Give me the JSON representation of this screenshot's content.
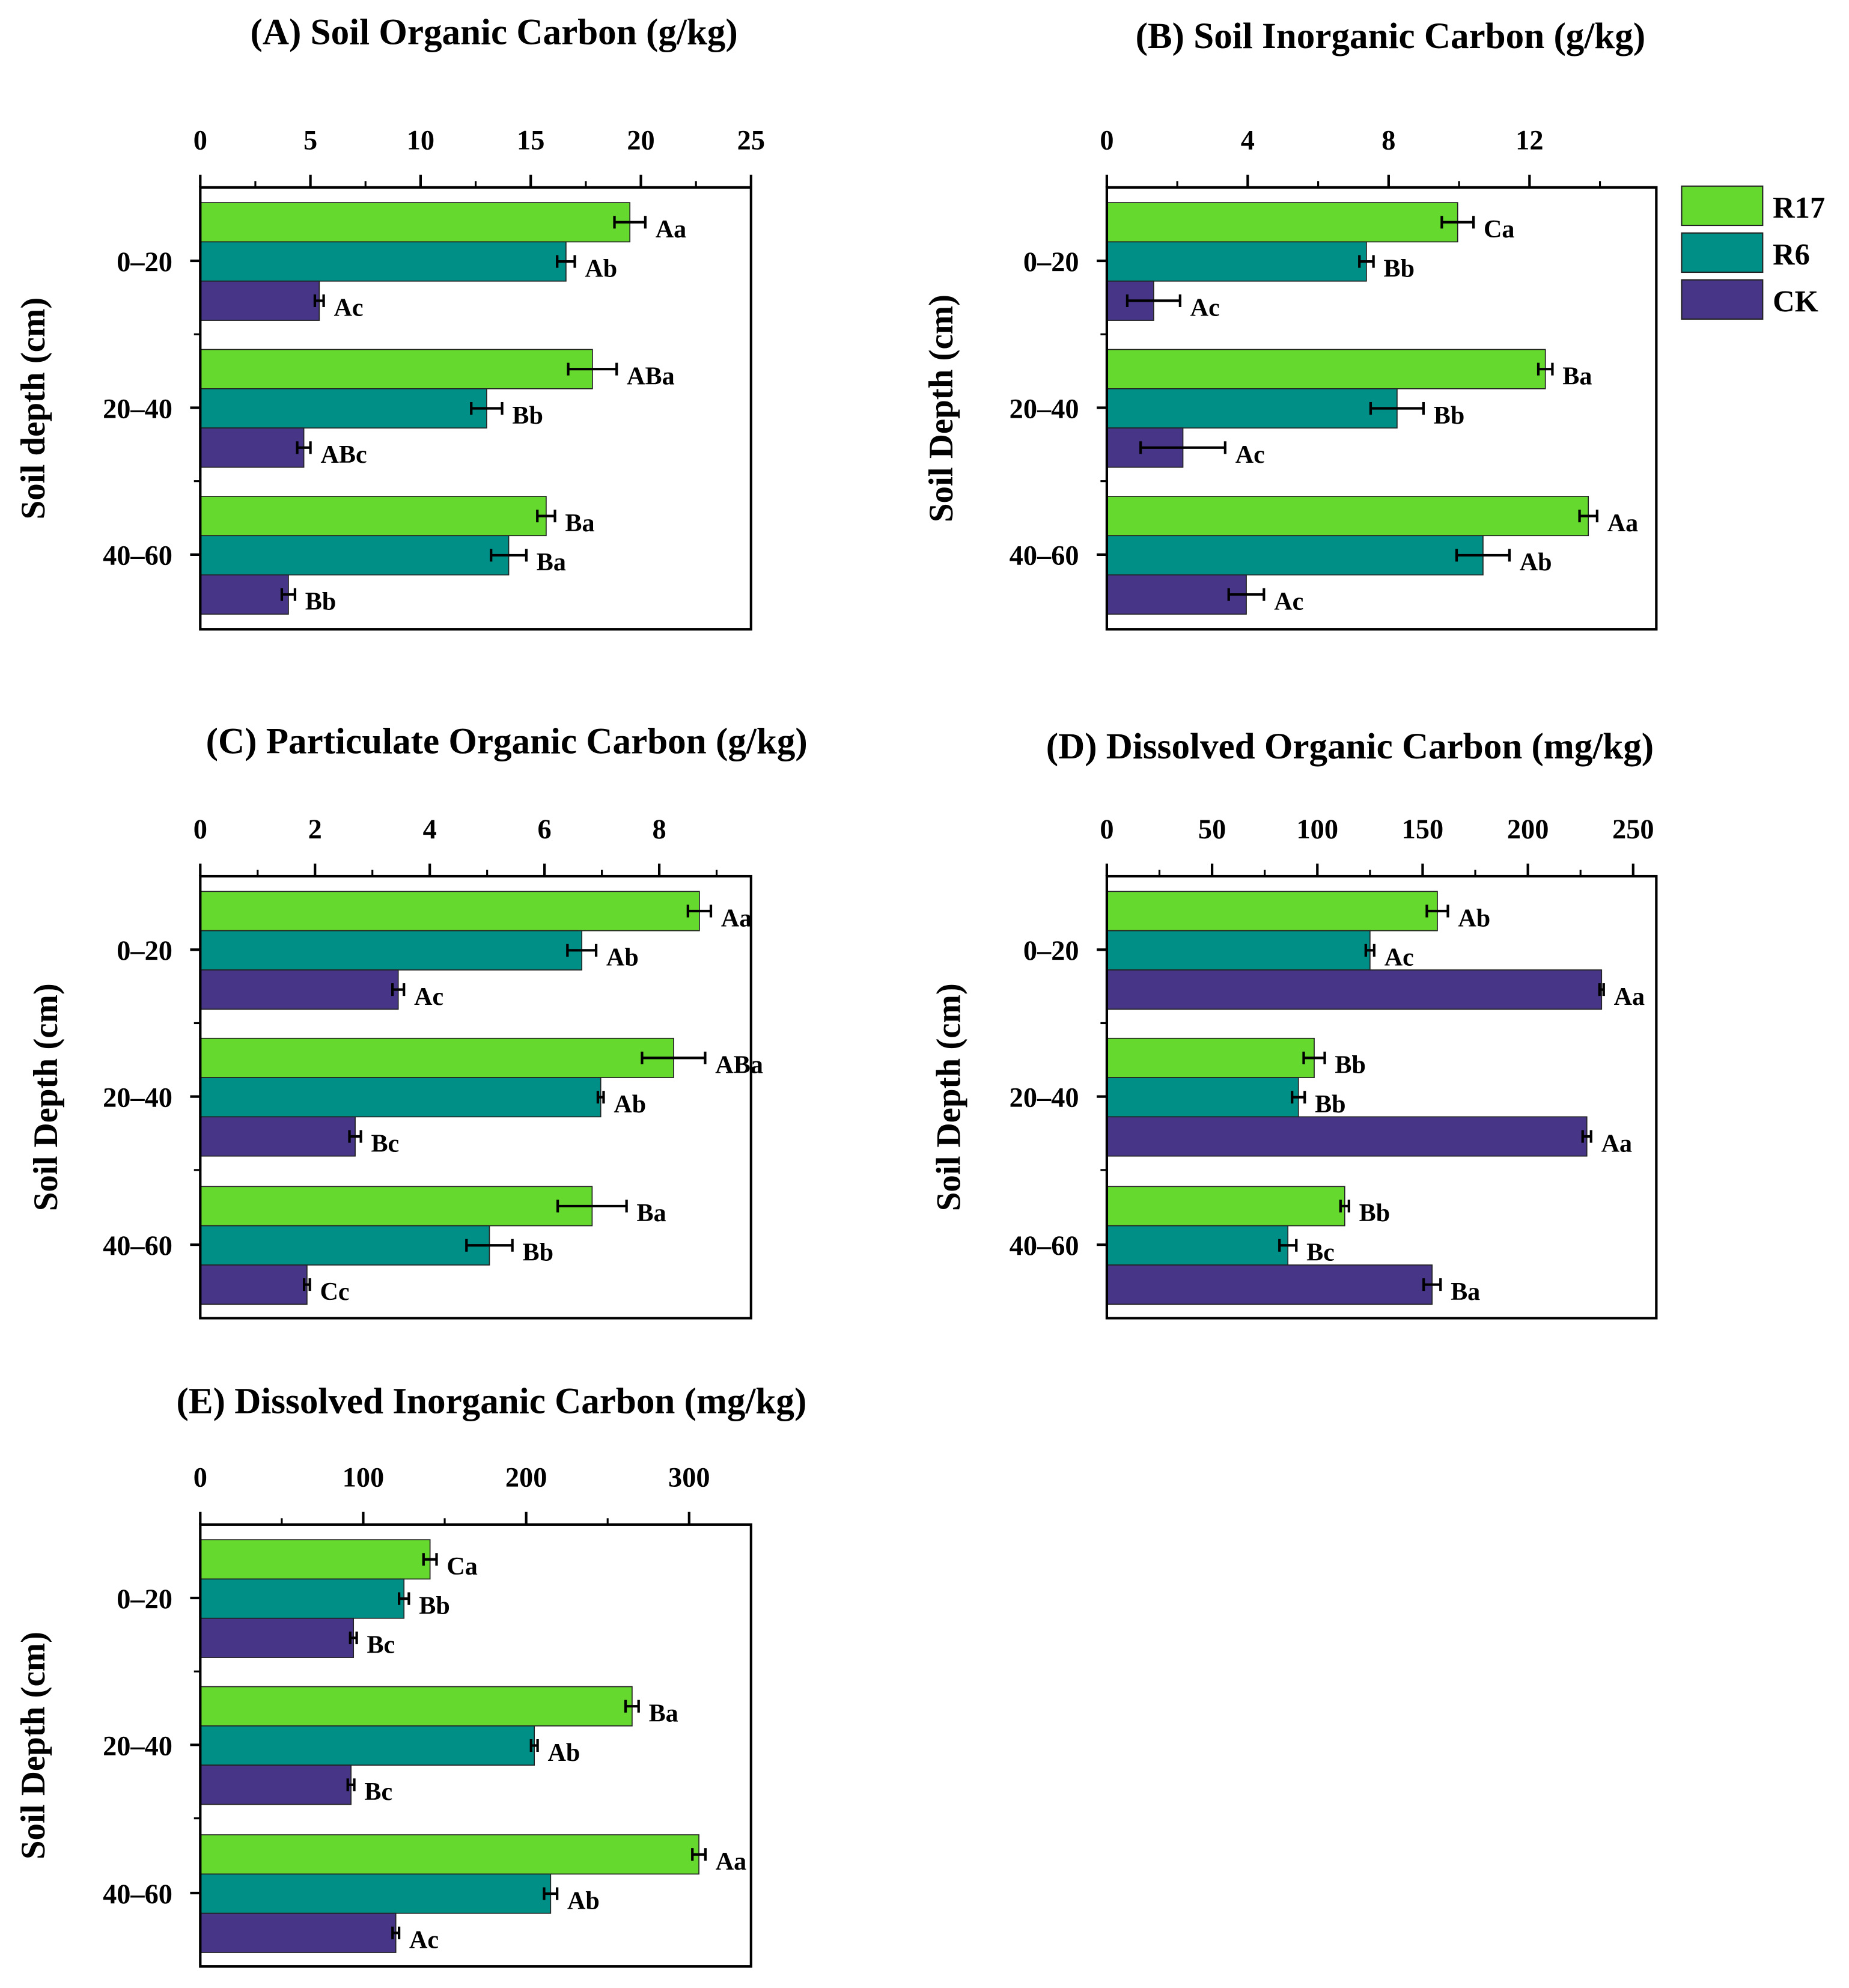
{
  "colors": {
    "R17": "#66d92e",
    "R6": "#008f87",
    "CK": "#473688"
  },
  "legend": [
    "R17",
    "R6",
    "CK"
  ],
  "chart_data": [
    {
      "type": "bar",
      "orientation": "horizontal",
      "title": "(A) Soil Organic Carbon (g/kg)",
      "ylabel": "Soil depth (cm)",
      "xlim": [
        0,
        25
      ],
      "xticks": [
        0,
        5,
        10,
        15,
        20,
        25
      ],
      "minor_step": 2.5,
      "categories": [
        "0–20",
        "20–40",
        "40–60"
      ],
      "series": [
        {
          "name": "R17",
          "values": [
            19.5,
            17.8,
            15.7
          ],
          "errors": [
            0.7,
            1.1,
            0.4
          ],
          "letters": [
            "Aa",
            "ABa",
            "Ba"
          ]
        },
        {
          "name": "R6",
          "values": [
            16.6,
            13.0,
            14.0
          ],
          "errors": [
            0.4,
            0.7,
            0.8
          ],
          "letters": [
            "Ab",
            "Bb",
            "Ba"
          ]
        },
        {
          "name": "CK",
          "values": [
            5.4,
            4.7,
            4.0
          ],
          "errors": [
            0.2,
            0.3,
            0.3
          ],
          "letters": [
            "Ac",
            "ABc",
            "Bb"
          ]
        }
      ]
    },
    {
      "type": "bar",
      "orientation": "horizontal",
      "title": "(B) Soil Inorganic Carbon (g/kg)",
      "ylabel": "Soil Depth (cm)",
      "xlim": [
        0,
        15.6
      ],
      "xticks": [
        0,
        4,
        8,
        12
      ],
      "minor_step": 2,
      "categories": [
        "0–20",
        "20–40",
        "40–60"
      ],
      "series": [
        {
          "name": "R17",
          "values": [
            9.96,
            12.45,
            13.67
          ],
          "errors": [
            0.45,
            0.2,
            0.25
          ],
          "letters": [
            "Ca",
            "Ba",
            "Aa"
          ]
        },
        {
          "name": "R6",
          "values": [
            7.37,
            8.24,
            10.68
          ],
          "errors": [
            0.2,
            0.75,
            0.75
          ],
          "letters": [
            "Bb",
            "Bb",
            "Ab"
          ]
        },
        {
          "name": "CK",
          "values": [
            1.33,
            2.16,
            3.96
          ],
          "errors": [
            0.75,
            1.2,
            0.5
          ],
          "letters": [
            "Ac",
            "Ac",
            "Ac"
          ]
        }
      ]
    },
    {
      "type": "bar",
      "orientation": "horizontal",
      "title": "(C) Particulate Organic Carbon (g/kg)",
      "ylabel": "Soil Depth (cm)",
      "xlim": [
        0,
        9.6
      ],
      "xticks": [
        0,
        2,
        4,
        6,
        8
      ],
      "minor_step": 1,
      "categories": [
        "0–20",
        "20–40",
        "40–60"
      ],
      "series": [
        {
          "name": "R17",
          "values": [
            8.7,
            8.25,
            6.83
          ],
          "errors": [
            0.2,
            0.55,
            0.6
          ],
          "letters": [
            "Aa",
            "ABa",
            "Ba"
          ]
        },
        {
          "name": "R6",
          "values": [
            6.65,
            6.98,
            5.04
          ],
          "errors": [
            0.25,
            0.05,
            0.4
          ],
          "letters": [
            "Ab",
            "Ab",
            "Bb"
          ]
        },
        {
          "name": "CK",
          "values": [
            3.45,
            2.7,
            1.86
          ],
          "errors": [
            0.1,
            0.1,
            0.05
          ],
          "letters": [
            "Ac",
            "Bc",
            "Cc"
          ]
        }
      ]
    },
    {
      "type": "bar",
      "orientation": "horizontal",
      "title": "(D) Dissolved Organic Carbon (mg/kg)",
      "ylabel": "Soil Depth (cm)",
      "xlim": [
        0,
        261
      ],
      "xticks": [
        0,
        50,
        100,
        150,
        200,
        250
      ],
      "minor_step": 25,
      "categories": [
        "0–20",
        "20–40",
        "40–60"
      ],
      "series": [
        {
          "name": "R17",
          "values": [
            157,
            98.5,
            113
          ],
          "errors": [
            5,
            5,
            2
          ],
          "letters": [
            "Ab",
            "Bb",
            "Bb"
          ]
        },
        {
          "name": "R6",
          "values": [
            125,
            91,
            86
          ],
          "errors": [
            2,
            3,
            4
          ],
          "letters": [
            "Ac",
            "Bb",
            "Bc"
          ]
        },
        {
          "name": "CK",
          "values": [
            235,
            228,
            154.5
          ],
          "errors": [
            1,
            2,
            4
          ],
          "letters": [
            "Aa",
            "Aa",
            "Ba"
          ]
        }
      ]
    },
    {
      "type": "bar",
      "orientation": "horizontal",
      "title": "(E) Dissolved Inorganic Carbon (mg/kg)",
      "ylabel": "Soil Depth (cm)",
      "xlim": [
        0,
        338
      ],
      "xticks": [
        0,
        100,
        200,
        300
      ],
      "minor_step": 50,
      "categories": [
        "0–20",
        "20–40",
        "40–60"
      ],
      "series": [
        {
          "name": "R17",
          "values": [
            141,
            265,
            306
          ],
          "errors": [
            4,
            4,
            4
          ],
          "letters": [
            "Ca",
            "Ba",
            "Aa"
          ]
        },
        {
          "name": "R6",
          "values": [
            125,
            205,
            215
          ],
          "errors": [
            3,
            2,
            4
          ],
          "letters": [
            "Bb",
            "Ab",
            "Ab"
          ]
        },
        {
          "name": "CK",
          "values": [
            94,
            92.5,
            120
          ],
          "errors": [
            2,
            2,
            2
          ],
          "letters": [
            "Bc",
            "Bc",
            "Ac"
          ]
        }
      ]
    }
  ]
}
